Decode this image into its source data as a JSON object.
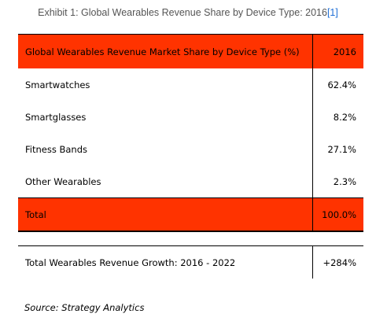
{
  "caption": {
    "text": "Exhibit 1: Global Wearables Revenue Share by Device Type: 2016",
    "ref": "[1]"
  },
  "chart_data": {
    "type": "table",
    "columns": [
      "Global Wearables Revenue Market Share by Device Type (%)",
      "2016"
    ],
    "rows": [
      {
        "label": "Smartwatches",
        "value": "62.4%"
      },
      {
        "label": "Smartglasses",
        "value": "8.2%"
      },
      {
        "label": "Fitness Bands",
        "value": "27.1%"
      },
      {
        "label": "Other Wearables",
        "value": "2.3%"
      }
    ],
    "total": {
      "label": "Total",
      "value": "100.0%"
    },
    "growth": {
      "label": "Total Wearables Revenue Growth: 2016 - 2022",
      "value": "+284%"
    }
  },
  "colors": {
    "header_fill": "#ff3300",
    "caption_link": "#1f6fd6"
  },
  "source": "Source: Strategy Analytics"
}
